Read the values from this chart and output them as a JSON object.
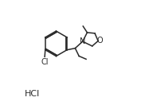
{
  "background": "#ffffff",
  "line_color": "#2a2a2a",
  "line_width": 1.1,
  "font_size_atoms": 7.0,
  "font_size_hcl": 8.0,
  "figsize": [
    1.82,
    1.37
  ],
  "dpi": 100,
  "xlim": [
    0,
    10
  ],
  "ylim": [
    0,
    10
  ]
}
